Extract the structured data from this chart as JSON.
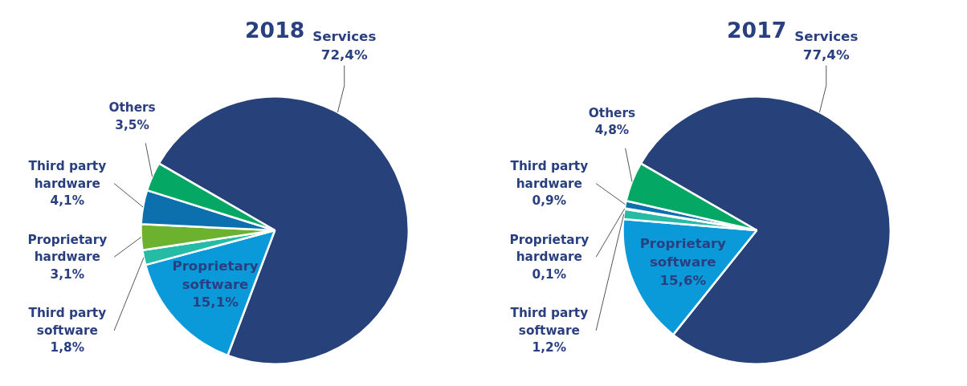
{
  "chart_data": [
    {
      "type": "pie",
      "title": "2018",
      "categories": [
        "Services",
        "Proprietary software",
        "Third party software",
        "Proprietary hardware",
        "Third party hardware",
        "Others"
      ],
      "values": [
        72.4,
        15.1,
        1.8,
        3.1,
        4.1,
        3.5
      ],
      "colors": [
        "#27427a",
        "#0a9ad9",
        "#26bba5",
        "#6cb22f",
        "#0b70ad",
        "#04a764"
      ],
      "value_labels": [
        "72,4%",
        "15,1%",
        "1,8%",
        "3,1%",
        "4,1%",
        "3,5%"
      ]
    },
    {
      "type": "pie",
      "title": "2017",
      "categories": [
        "Services",
        "Proprietary software",
        "Third party software",
        "Proprietary hardware",
        "Third party hardware",
        "Others"
      ],
      "values": [
        77.4,
        15.6,
        1.2,
        0.1,
        0.9,
        4.8
      ],
      "colors": [
        "#27427a",
        "#0a9ad9",
        "#26bba5",
        "#6cb22f",
        "#0b70ad",
        "#04a764"
      ],
      "value_labels": [
        "77,4%",
        "15,6%",
        "1,2%",
        "0,1%",
        "0,9%",
        "4,8%"
      ]
    }
  ]
}
